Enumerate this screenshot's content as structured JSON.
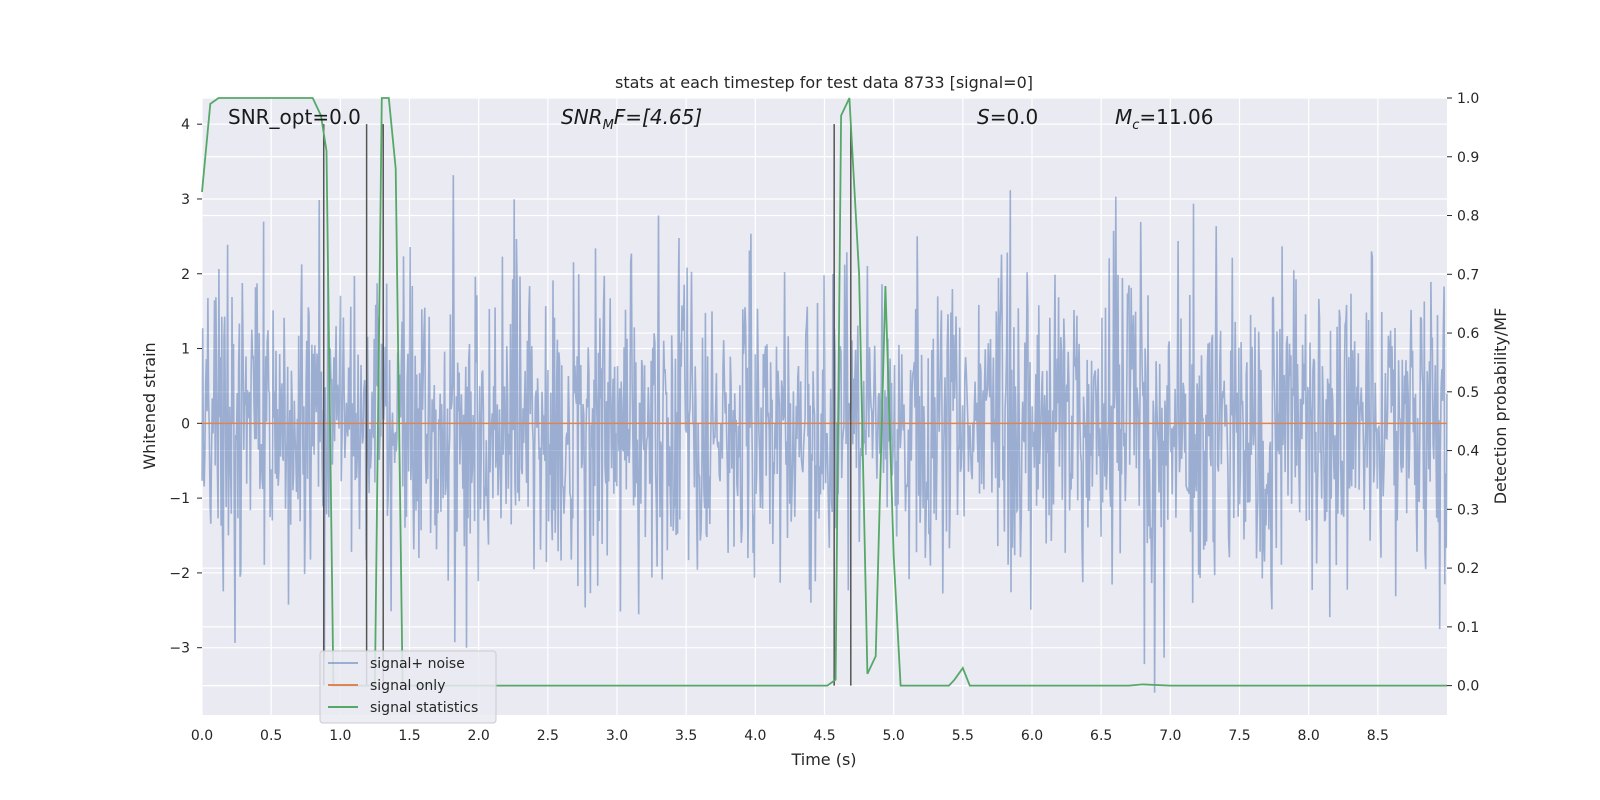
{
  "chart_data": {
    "type": "line",
    "title": "stats at each timestep for test data 8733 [signal=0]",
    "xlabel": "Time (s)",
    "ylabel_left": "Whitened strain",
    "ylabel_right": "Detection probability/MF",
    "xlim": [
      0.0,
      9.0
    ],
    "ylim_left": [
      -3.9,
      4.35
    ],
    "ylim_right": [
      -0.05,
      1.0
    ],
    "x_ticks": [
      "0.0",
      "0.5",
      "1.0",
      "1.5",
      "2.0",
      "2.5",
      "3.0",
      "3.5",
      "4.0",
      "4.5",
      "5.0",
      "5.5",
      "6.0",
      "6.5",
      "7.0",
      "7.5",
      "8.0",
      "8.5"
    ],
    "y_ticks_left": [
      4,
      3,
      2,
      1,
      0,
      -1,
      -2,
      -3
    ],
    "y_ticks_left_labels": [
      "4",
      "3",
      "2",
      "1",
      "0",
      "−1",
      "−2",
      "−3"
    ],
    "y_ticks_right_labels": [
      "1.0",
      "0.9",
      "0.8",
      "0.7",
      "0.6",
      "0.5",
      "0.4",
      "0.3",
      "0.2",
      "0.1",
      "0.0"
    ],
    "grid": true,
    "legend_placement": "lower-left",
    "annotations": {
      "snr_opt": "SNR_opt=0.0",
      "snr_mf_prefix": "SNR",
      "snr_mf_sub": "M",
      "snr_mf_suffix": "F=[4.65]",
      "s_prefix": "S",
      "s_suffix": "=0.0",
      "mc_prefix": "M",
      "mc_sub": "c",
      "mc_suffix": "=11.06"
    },
    "vertical_lines_x": [
      0.88,
      1.19,
      1.31,
      4.57,
      4.69
    ],
    "series": [
      {
        "name": "signal+ noise",
        "color": "#4c72b0",
        "alpha": 0.5,
        "style": "noise",
        "seed": 8733,
        "samples": 1700,
        "sigma": 1.0
      },
      {
        "name": "signal only",
        "color": "#dd8452",
        "x": [
          0.0,
          9.0
        ],
        "y": [
          0.0,
          0.0
        ]
      },
      {
        "name": "signal statistics",
        "color": "#55a868",
        "axis": "right",
        "x": [
          0.0,
          0.06,
          0.12,
          0.2,
          0.3,
          0.4,
          0.5,
          0.6,
          0.7,
          0.8,
          0.86,
          0.9,
          0.95,
          1.0,
          1.05,
          1.1,
          1.15,
          1.2,
          1.25,
          1.3,
          1.35,
          1.4,
          1.45,
          1.5,
          2.0,
          2.5,
          3.0,
          3.5,
          4.0,
          4.5,
          4.52,
          4.58,
          4.62,
          4.68,
          4.75,
          4.81,
          4.87,
          4.94,
          5.0,
          5.05,
          5.1,
          5.2,
          5.3,
          5.4,
          5.44,
          5.5,
          5.55,
          5.6,
          6.0,
          6.5,
          6.7,
          6.8,
          7.0,
          8.0,
          9.0
        ],
        "y": [
          0.84,
          0.99,
          1.0,
          1.0,
          1.0,
          1.0,
          1.0,
          1.0,
          1.0,
          1.0,
          0.97,
          0.91,
          0.0,
          0.0,
          0.0,
          0.0,
          0.0,
          0.0,
          0.0,
          1.0,
          1.0,
          0.88,
          0.0,
          0.0,
          0.0,
          0.0,
          0.0,
          0.0,
          0.0,
          0.0,
          0.0,
          0.01,
          0.97,
          1.0,
          0.7,
          0.02,
          0.05,
          0.68,
          0.22,
          0.0,
          0.0,
          0.0,
          0.0,
          0.0,
          0.01,
          0.03,
          0.0,
          0.0,
          0.0,
          0.0,
          0.0,
          0.002,
          0.0,
          0.0,
          0.0
        ]
      }
    ]
  }
}
